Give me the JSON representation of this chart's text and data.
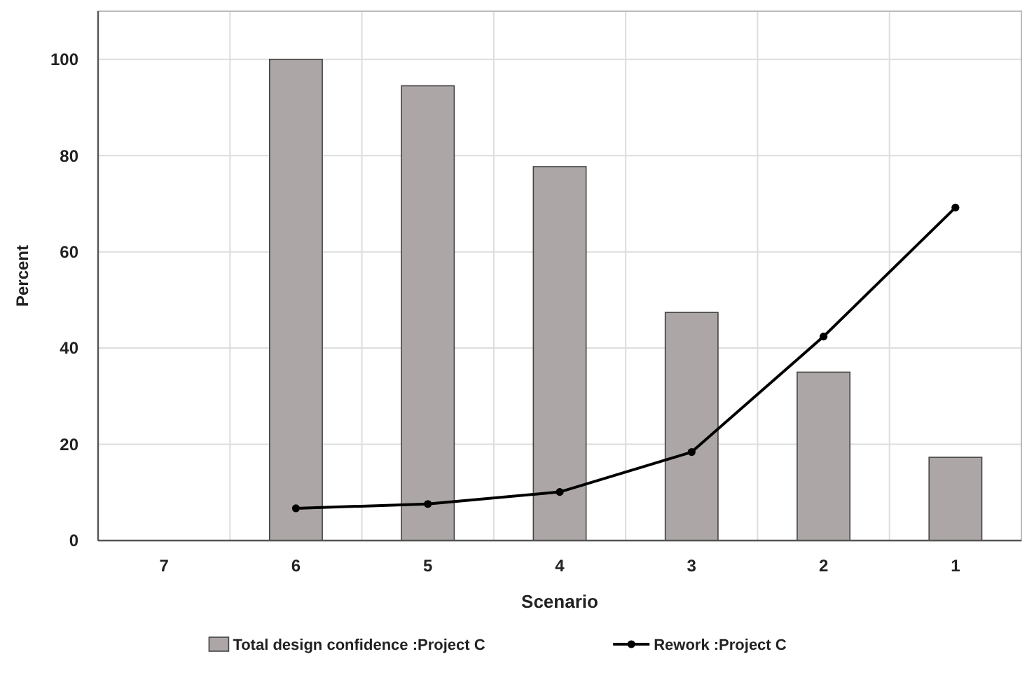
{
  "chart_data": {
    "type": "bar",
    "xlabel": "Scenario",
    "ylabel": "Percent",
    "categories": [
      "7",
      "6",
      "5",
      "4",
      "3",
      "2",
      "1"
    ],
    "series": [
      {
        "name": "Total design confidence :Project C",
        "color": "#aca7a6",
        "values": [
          null,
          100,
          94.5,
          77.7,
          47.4,
          35,
          17.3
        ]
      },
      {
        "name": "Rework :Project C",
        "type": "line",
        "color": "#000000",
        "marker": "circle",
        "values": [
          null,
          6.7,
          7.6,
          10.1,
          18.4,
          42.4,
          69.2
        ]
      }
    ],
    "ylim": [
      0,
      110
    ],
    "yticks": [
      0,
      20,
      40,
      60,
      80,
      100
    ],
    "grid": true,
    "legend": "bottom"
  }
}
